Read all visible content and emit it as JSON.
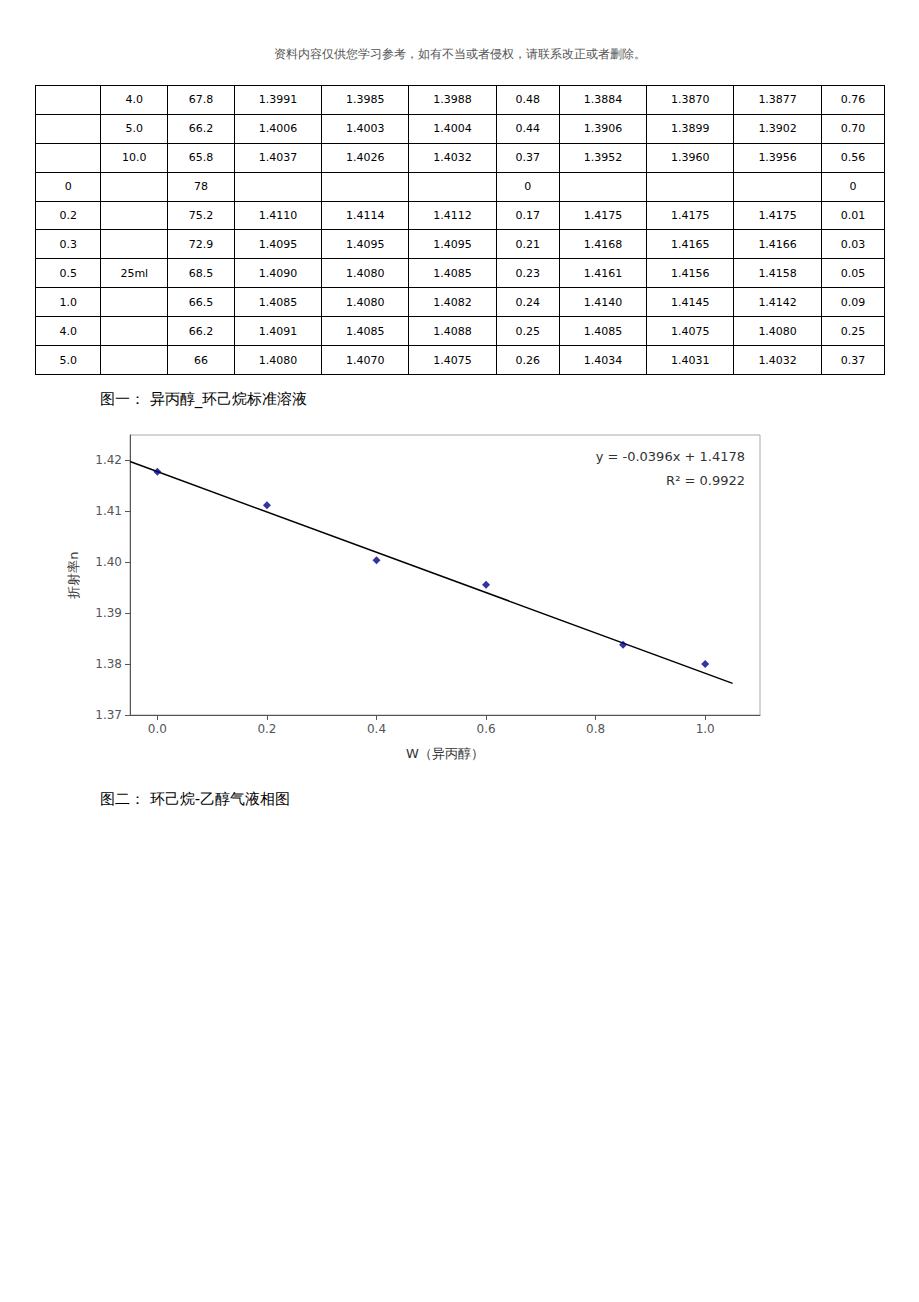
{
  "chart_data": [
    {
      "type": "table",
      "title": "资料内容仅供您学习参考，如有不当或者侵权，请联系改正或者删除。",
      "rows": [
        [
          null,
          "4.0",
          "67.8",
          "1.3991",
          "1.3985",
          "1.3988",
          "0.48",
          "1.3884",
          "1.3870",
          "1.3877",
          "0.76"
        ],
        [
          null,
          "5.0",
          "66.2",
          "1.4006",
          "1.4003",
          "1.4004",
          "0.44",
          "1.3906",
          "1.3899",
          "1.3902",
          "0.70"
        ],
        [
          null,
          "10.0",
          "65.8",
          "1.4037",
          "1.4026",
          "1.4032",
          "0.37",
          "1.3952",
          "1.3960",
          "1.3956",
          "0.56"
        ],
        [
          "0",
          null,
          "78",
          null,
          null,
          null,
          "0",
          null,
          null,
          null,
          "0"
        ],
        [
          "0.2",
          null,
          "75.2",
          "1.4110",
          "1.4114",
          "1.4112",
          "0.17",
          "1.4175",
          "1.4175",
          "1.4175",
          "0.01"
        ],
        [
          "0.3",
          null,
          "72.9",
          "1.4095",
          "1.4095",
          "1.4095",
          "0.21",
          "1.4168",
          "1.4165",
          "1.4166",
          "0.03"
        ],
        [
          "0.5",
          "25ml",
          "68.5",
          "1.4090",
          "1.4080",
          "1.4085",
          "0.23",
          "1.4161",
          "1.4156",
          "1.4158",
          "0.05"
        ],
        [
          "1.0",
          null,
          "66.5",
          "1.4085",
          "1.4080",
          "1.4082",
          "0.24",
          "1.4140",
          "1.4145",
          "1.4142",
          "0.09"
        ],
        [
          "4.0",
          null,
          "66.2",
          "1.4091",
          "1.4085",
          "1.4088",
          "0.25",
          "1.4085",
          "1.4075",
          "1.4080",
          "0.25"
        ],
        [
          "5.0",
          null,
          "66",
          "1.4080",
          "1.4070",
          "1.4075",
          "0.26",
          "1.4034",
          "1.4031",
          "1.4032",
          "0.37"
        ]
      ]
    },
    {
      "type": "scatter",
      "title": "图一： 异丙醇_环己烷标准溶液",
      "caption": "图二： 环己烷-乙醇气液相图",
      "xlabel": "W（异丙醇）",
      "ylabel": "折射率n",
      "xlim": [
        -0.05,
        1.1
      ],
      "ylim": [
        1.37,
        1.425
      ],
      "xticks": [
        {
          "value": 0,
          "label": "0.0"
        },
        0.2,
        0.4,
        0.6,
        0.8,
        {
          "value": 1,
          "label": "1.0"
        }
      ],
      "yticks": [
        1.37,
        1.38,
        1.39,
        {
          "value": 1.4,
          "label": "1.40"
        },
        1.41,
        1.42
      ],
      "grid": false,
      "annotations": [
        "y = -0.0396x + 1.4178",
        "R² = 0.9922"
      ],
      "series": [
        {
          "type": "scatter",
          "marker": "diamond",
          "color": "#00008B",
          "x": [
            0,
            0.2,
            0.4,
            0.6,
            0.85,
            1.0
          ],
          "values": [
            1.4178,
            1.4112,
            1.4004,
            1.3956,
            1.3838,
            1.38
          ]
        },
        {
          "type": "line",
          "line_style": "solid",
          "color": "#000000",
          "x": [
            -0.05,
            1.05
          ],
          "values": [
            1.41978,
            1.37622
          ]
        }
      ]
    }
  ]
}
